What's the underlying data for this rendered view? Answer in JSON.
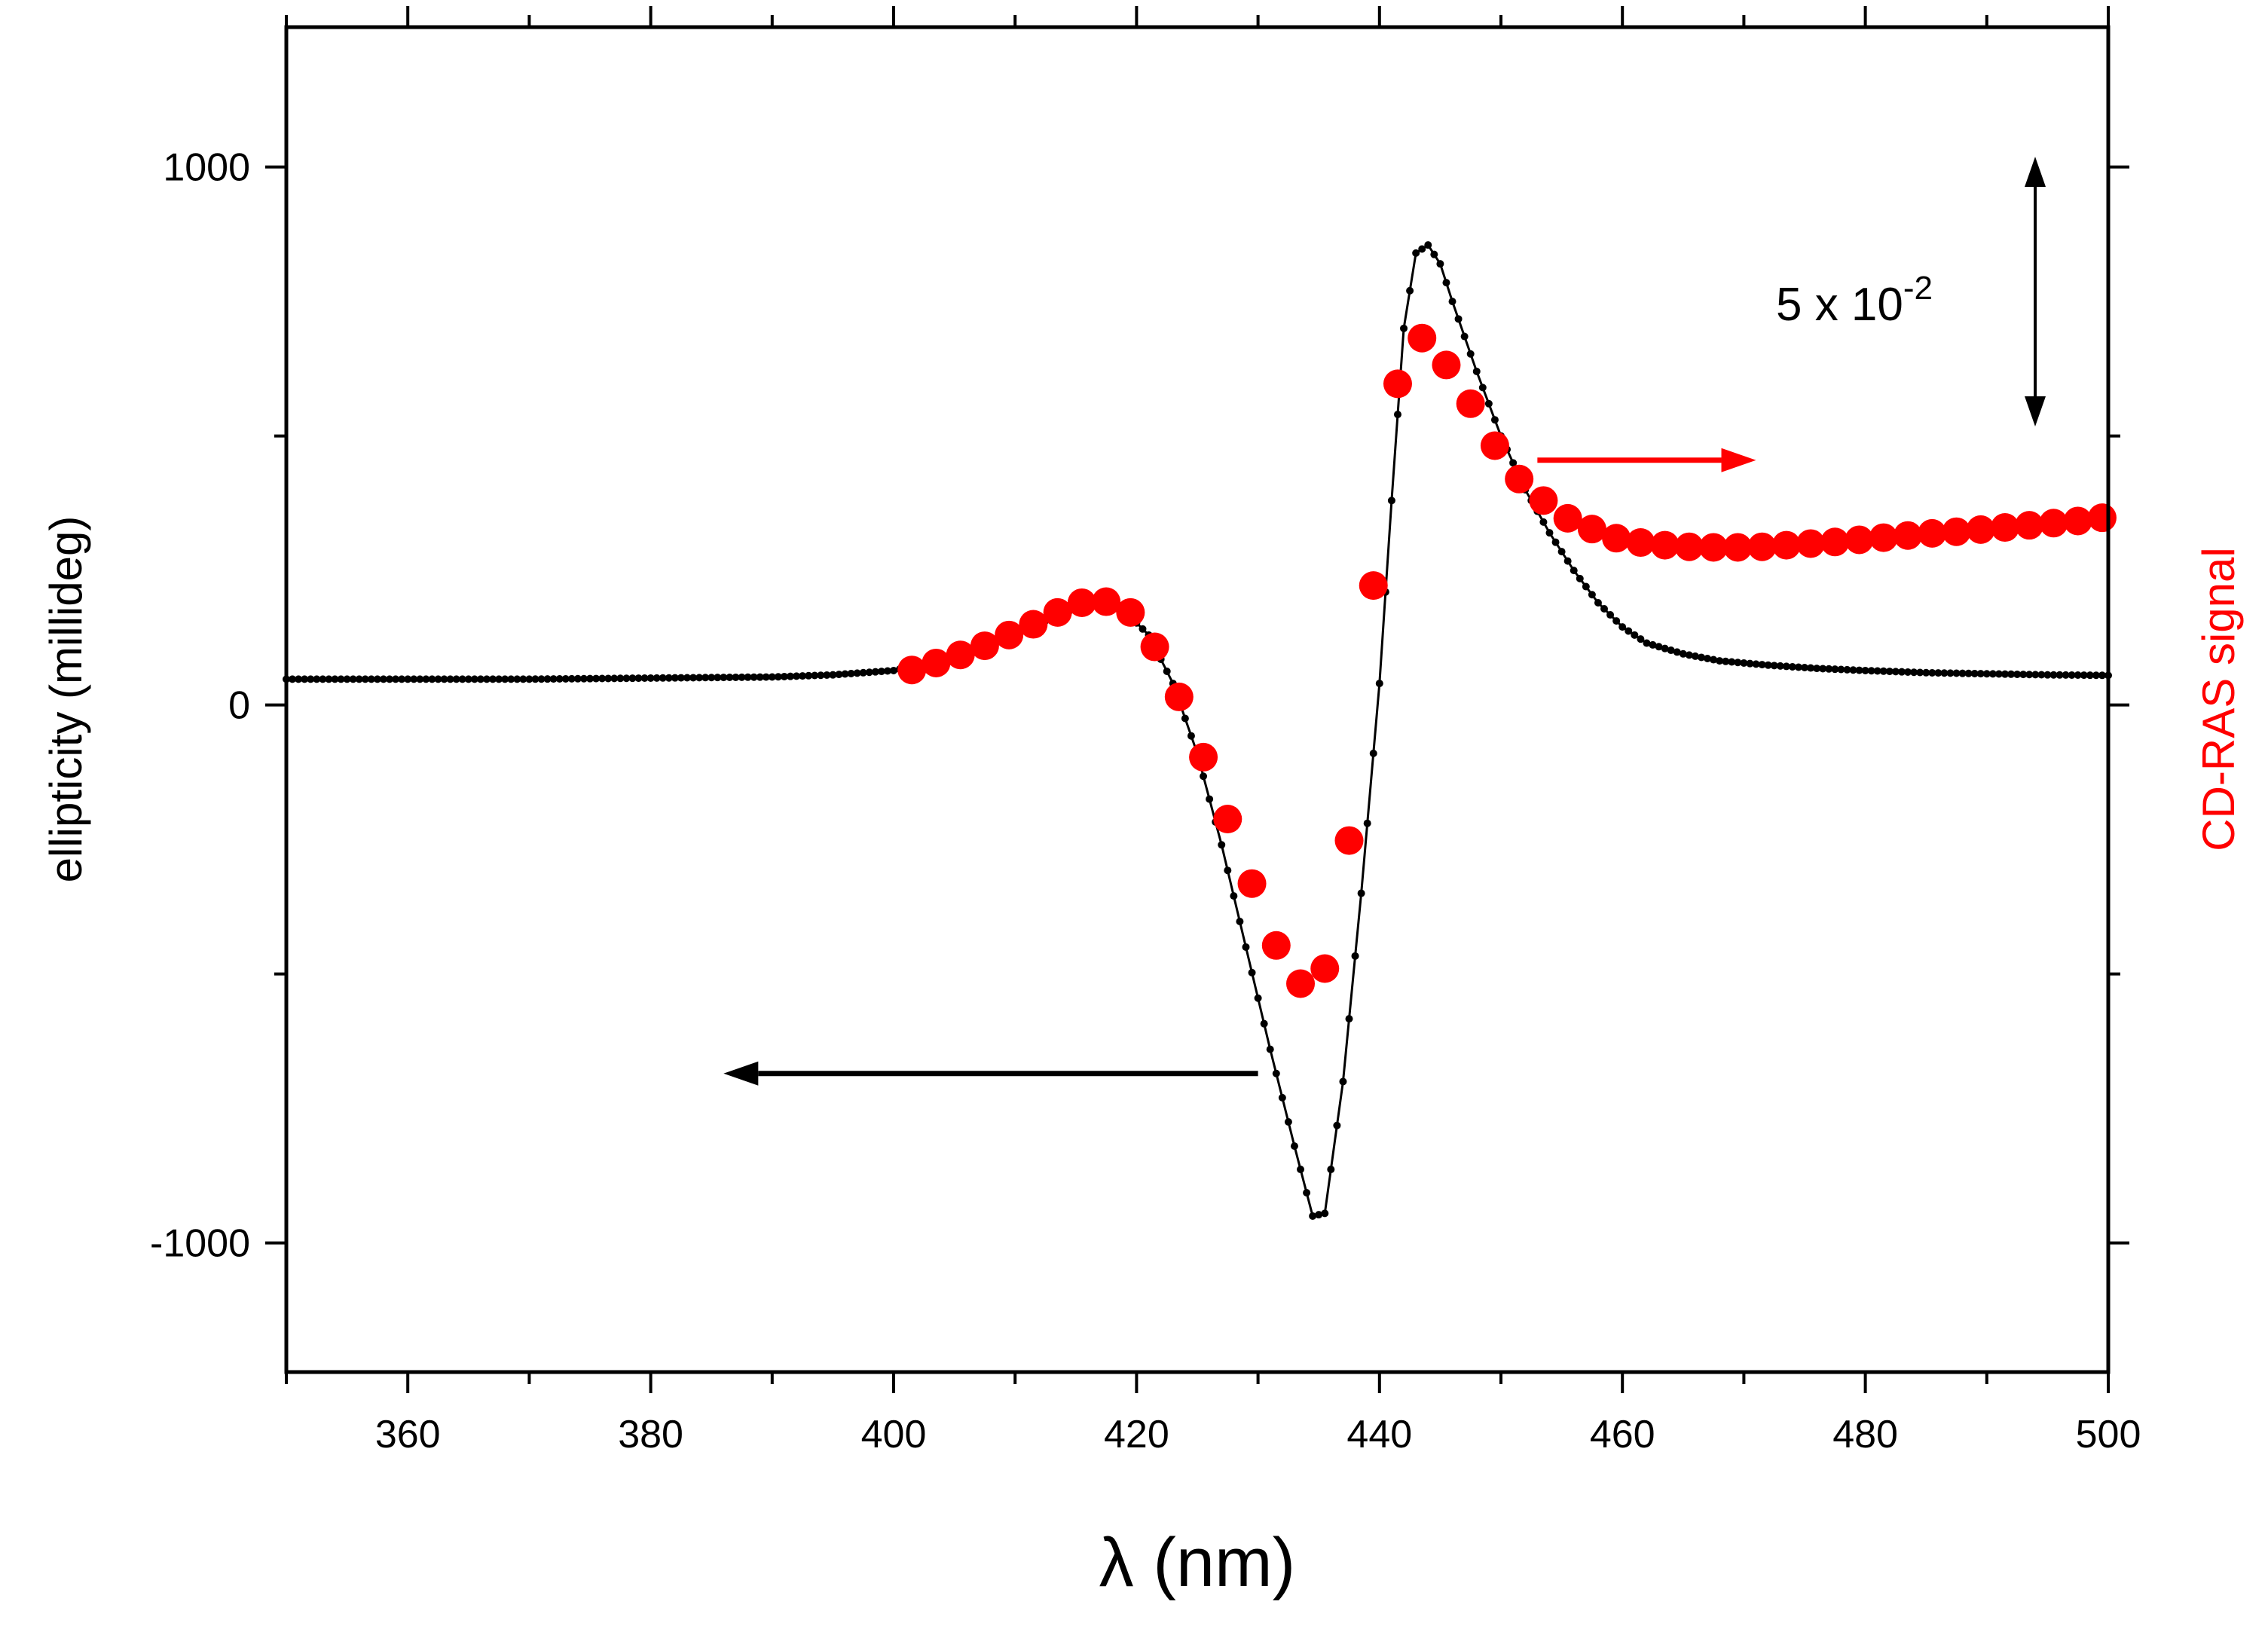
{
  "chart_data": {
    "type": "scatter",
    "title": "",
    "xlabel": "λ (nm)",
    "ylabel_left": "ellipticity (millideg)",
    "ylabel_right": "CD-RAS signal",
    "xlim": [
      350,
      500
    ],
    "ylim_left": [
      -1240,
      1260
    ],
    "x_ticks": [
      360,
      380,
      400,
      420,
      440,
      460,
      480,
      500
    ],
    "x_tick_labels": [
      "360",
      "380",
      "400",
      "420",
      "440",
      "460",
      "480",
      "500"
    ],
    "y_ticks_left": [
      -1000,
      0,
      1000
    ],
    "y_tick_labels_left": [
      "-1000",
      "0",
      "1000"
    ],
    "annotation_scale_bar": {
      "label_base": "5 x 10",
      "label_exponent": "-2",
      "represents": "5 x 10^-2 in CD-RAS signal units"
    },
    "series": [
      {
        "name": "ellipticity",
        "axis": "left",
        "color": "#000000",
        "marker": "small-dot",
        "points": [
          [
            350,
            48
          ],
          [
            360,
            48
          ],
          [
            370,
            48
          ],
          [
            380,
            50
          ],
          [
            390,
            52
          ],
          [
            395,
            56
          ],
          [
            400,
            64
          ],
          [
            403,
            80
          ],
          [
            406,
            100
          ],
          [
            409,
            125
          ],
          [
            412,
            152
          ],
          [
            415,
            180
          ],
          [
            417,
            188
          ],
          [
            419,
            175
          ],
          [
            421,
            130
          ],
          [
            423,
            40
          ],
          [
            425,
            -90
          ],
          [
            427,
            -260
          ],
          [
            429,
            -450
          ],
          [
            431,
            -640
          ],
          [
            433,
            -820
          ],
          [
            434.5,
            -950
          ],
          [
            435.5,
            -945
          ],
          [
            437,
            -700
          ],
          [
            438.5,
            -350
          ],
          [
            440,
            40
          ],
          [
            441,
            380
          ],
          [
            442,
            700
          ],
          [
            443,
            840
          ],
          [
            444,
            855
          ],
          [
            445,
            820
          ],
          [
            446,
            750
          ],
          [
            448,
            620
          ],
          [
            450,
            500
          ],
          [
            452,
            400
          ],
          [
            454,
            320
          ],
          [
            456,
            250
          ],
          [
            458,
            190
          ],
          [
            460,
            145
          ],
          [
            462,
            115
          ],
          [
            465,
            95
          ],
          [
            468,
            82
          ],
          [
            472,
            74
          ],
          [
            476,
            68
          ],
          [
            480,
            64
          ],
          [
            485,
            60
          ],
          [
            490,
            58
          ],
          [
            495,
            56
          ],
          [
            500,
            55
          ]
        ]
      },
      {
        "name": "CD-RAS signal",
        "axis": "right",
        "color": "#ff0000",
        "marker": "large-dot",
        "points": [
          [
            401.5,
            65
          ],
          [
            403.5,
            78
          ],
          [
            405.5,
            93
          ],
          [
            407.5,
            110
          ],
          [
            409.5,
            130
          ],
          [
            411.5,
            150
          ],
          [
            413.5,
            172
          ],
          [
            415.5,
            190
          ],
          [
            417.5,
            192
          ],
          [
            419.5,
            172
          ],
          [
            421.5,
            108
          ],
          [
            423.5,
            15
          ],
          [
            425.5,
            -97
          ],
          [
            427.5,
            -212
          ],
          [
            429.5,
            -332
          ],
          [
            431.5,
            -447
          ],
          [
            433.5,
            -518
          ],
          [
            435.5,
            -490
          ],
          [
            437.5,
            -252
          ],
          [
            439.5,
            222
          ],
          [
            441.5,
            597
          ],
          [
            443.5,
            682
          ],
          [
            445.5,
            632
          ],
          [
            447.5,
            560
          ],
          [
            449.5,
            482
          ],
          [
            451.5,
            420
          ],
          [
            453.5,
            380
          ],
          [
            455.5,
            347
          ],
          [
            457.5,
            327
          ],
          [
            459.5,
            310
          ],
          [
            461.5,
            302
          ],
          [
            463.5,
            297
          ],
          [
            465.5,
            294
          ],
          [
            467.5,
            293
          ],
          [
            469.5,
            293
          ],
          [
            471.5,
            294
          ],
          [
            473.5,
            297
          ],
          [
            475.5,
            300
          ],
          [
            477.5,
            303
          ],
          [
            479.5,
            307
          ],
          [
            481.5,
            311
          ],
          [
            483.5,
            315
          ],
          [
            485.5,
            319
          ],
          [
            487.5,
            322
          ],
          [
            489.5,
            326
          ],
          [
            491.5,
            330
          ],
          [
            493.5,
            334
          ],
          [
            495.5,
            338
          ],
          [
            497.5,
            342
          ],
          [
            499.5,
            348
          ]
        ]
      }
    ],
    "arrows": [
      {
        "series": "ellipticity",
        "direction": "left",
        "x_from": 430,
        "x_to": 386,
        "y": -685
      },
      {
        "series": "CD-RAS signal",
        "direction": "right",
        "x_from": 453,
        "x_to": 471,
        "y": 455
      }
    ]
  }
}
